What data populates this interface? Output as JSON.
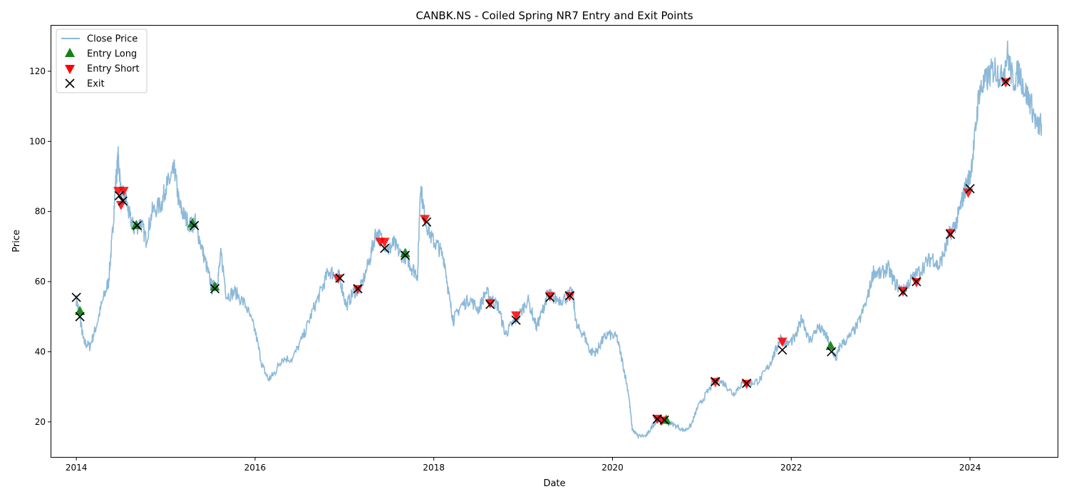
{
  "chart_data": {
    "type": "line",
    "title": "CANBK.NS - Coiled Spring NR7 Entry and Exit Points",
    "xlabel": "Date",
    "ylabel": "Price",
    "xlim": [
      2013.72,
      2024.98
    ],
    "ylim": [
      10,
      133
    ],
    "x_ticks": [
      2014,
      2016,
      2018,
      2020,
      2022,
      2024
    ],
    "x_tick_labels": [
      "2014",
      "2016",
      "2018",
      "2020",
      "2022",
      "2024"
    ],
    "y_ticks": [
      20,
      40,
      60,
      80,
      100,
      120
    ],
    "y_tick_labels": [
      "20",
      "40",
      "60",
      "80",
      "100",
      "120"
    ],
    "grid": false,
    "legend_position": "top-left",
    "colors": {
      "close": "#8cb9d8",
      "entry_long": "#148214",
      "entry_short": "#ff0000",
      "exit": "#000000"
    },
    "series": [
      {
        "name": "Close Price",
        "kind": "line",
        "points": [
          [
            2014.0,
            55
          ],
          [
            2014.04,
            50
          ],
          [
            2014.08,
            43
          ],
          [
            2014.15,
            41.5
          ],
          [
            2014.22,
            47
          ],
          [
            2014.3,
            55
          ],
          [
            2014.36,
            60
          ],
          [
            2014.4,
            72
          ],
          [
            2014.44,
            88
          ],
          [
            2014.47,
            96
          ],
          [
            2014.5,
            85
          ],
          [
            2014.55,
            84
          ],
          [
            2014.6,
            78
          ],
          [
            2014.65,
            75
          ],
          [
            2014.72,
            77
          ],
          [
            2014.78,
            72
          ],
          [
            2014.85,
            80
          ],
          [
            2014.95,
            82
          ],
          [
            2015.0,
            87
          ],
          [
            2015.05,
            89
          ],
          [
            2015.1,
            92
          ],
          [
            2015.15,
            82
          ],
          [
            2015.2,
            79
          ],
          [
            2015.28,
            76
          ],
          [
            2015.33,
            77
          ],
          [
            2015.4,
            70
          ],
          [
            2015.47,
            63
          ],
          [
            2015.52,
            58
          ],
          [
            2015.58,
            60
          ],
          [
            2015.62,
            68
          ],
          [
            2015.68,
            56
          ],
          [
            2015.78,
            57
          ],
          [
            2015.9,
            53
          ],
          [
            2016.0,
            46
          ],
          [
            2016.08,
            36
          ],
          [
            2016.15,
            32
          ],
          [
            2016.22,
            34
          ],
          [
            2016.3,
            38
          ],
          [
            2016.42,
            38
          ],
          [
            2016.55,
            45
          ],
          [
            2016.65,
            52
          ],
          [
            2016.75,
            58
          ],
          [
            2016.82,
            63
          ],
          [
            2016.9,
            62
          ],
          [
            2016.95,
            61
          ],
          [
            2017.02,
            53
          ],
          [
            2017.1,
            57
          ],
          [
            2017.18,
            58
          ],
          [
            2017.28,
            66
          ],
          [
            2017.35,
            74
          ],
          [
            2017.42,
            72
          ],
          [
            2017.5,
            69
          ],
          [
            2017.55,
            71
          ],
          [
            2017.62,
            68
          ],
          [
            2017.7,
            67
          ],
          [
            2017.75,
            64
          ],
          [
            2017.82,
            62
          ],
          [
            2017.85,
            88
          ],
          [
            2017.9,
            78
          ],
          [
            2017.98,
            72
          ],
          [
            2018.05,
            70
          ],
          [
            2018.12,
            66
          ],
          [
            2018.18,
            54
          ],
          [
            2018.22,
            49
          ],
          [
            2018.3,
            53
          ],
          [
            2018.4,
            55
          ],
          [
            2018.5,
            52
          ],
          [
            2018.58,
            57
          ],
          [
            2018.65,
            55
          ],
          [
            2018.72,
            53
          ],
          [
            2018.8,
            45
          ],
          [
            2018.88,
            48
          ],
          [
            2018.95,
            50
          ],
          [
            2019.05,
            55
          ],
          [
            2019.15,
            47
          ],
          [
            2019.22,
            52
          ],
          [
            2019.28,
            57
          ],
          [
            2019.35,
            55
          ],
          [
            2019.45,
            55
          ],
          [
            2019.55,
            57
          ],
          [
            2019.6,
            47
          ],
          [
            2019.68,
            45
          ],
          [
            2019.75,
            40
          ],
          [
            2019.82,
            40
          ],
          [
            2019.88,
            43
          ],
          [
            2019.95,
            45
          ],
          [
            2020.05,
            44
          ],
          [
            2020.12,
            36
          ],
          [
            2020.18,
            28
          ],
          [
            2020.22,
            18
          ],
          [
            2020.28,
            16
          ],
          [
            2020.38,
            16
          ],
          [
            2020.45,
            19
          ],
          [
            2020.52,
            21
          ],
          [
            2020.6,
            20
          ],
          [
            2020.7,
            19
          ],
          [
            2020.8,
            17.5
          ],
          [
            2020.88,
            19
          ],
          [
            2020.95,
            24
          ],
          [
            2021.05,
            28
          ],
          [
            2021.15,
            32
          ],
          [
            2021.25,
            31
          ],
          [
            2021.35,
            28
          ],
          [
            2021.45,
            31
          ],
          [
            2021.55,
            31
          ],
          [
            2021.65,
            32
          ],
          [
            2021.75,
            36
          ],
          [
            2021.82,
            40
          ],
          [
            2021.88,
            44
          ],
          [
            2021.95,
            42
          ],
          [
            2022.05,
            44
          ],
          [
            2022.12,
            50
          ],
          [
            2022.2,
            43
          ],
          [
            2022.3,
            47
          ],
          [
            2022.38,
            45
          ],
          [
            2022.45,
            41
          ],
          [
            2022.5,
            38
          ],
          [
            2022.55,
            42
          ],
          [
            2022.65,
            44
          ],
          [
            2022.75,
            48
          ],
          [
            2022.85,
            55
          ],
          [
            2022.92,
            63
          ],
          [
            2023.0,
            62
          ],
          [
            2023.08,
            64
          ],
          [
            2023.15,
            60
          ],
          [
            2023.25,
            57
          ],
          [
            2023.32,
            60
          ],
          [
            2023.4,
            62
          ],
          [
            2023.5,
            65
          ],
          [
            2023.58,
            67
          ],
          [
            2023.65,
            64
          ],
          [
            2023.72,
            69
          ],
          [
            2023.78,
            74
          ],
          [
            2023.85,
            77
          ],
          [
            2023.9,
            82
          ],
          [
            2023.95,
            87
          ],
          [
            2024.0,
            90
          ],
          [
            2024.05,
            100
          ],
          [
            2024.1,
            114
          ],
          [
            2024.15,
            116
          ],
          [
            2024.22,
            119
          ],
          [
            2024.28,
            121
          ],
          [
            2024.35,
            118
          ],
          [
            2024.42,
            125
          ],
          [
            2024.48,
            117
          ],
          [
            2024.55,
            120
          ],
          [
            2024.62,
            114
          ],
          [
            2024.68,
            111
          ],
          [
            2024.75,
            104
          ],
          [
            2024.8,
            105
          ]
        ]
      },
      {
        "name": "Entry Long",
        "kind": "marker",
        "marker": "triangle-up",
        "points": [
          [
            2014.04,
            51.5
          ],
          [
            2014.67,
            76
          ],
          [
            2015.3,
            76.5
          ],
          [
            2015.55,
            58.5
          ],
          [
            2017.68,
            68
          ],
          [
            2020.6,
            20.5
          ],
          [
            2022.44,
            41.5
          ]
        ]
      },
      {
        "name": "Entry Short",
        "kind": "marker",
        "marker": "triangle-down",
        "points": [
          [
            2014.47,
            86
          ],
          [
            2014.5,
            82
          ],
          [
            2014.53,
            86
          ],
          [
            2016.93,
            61
          ],
          [
            2017.15,
            58
          ],
          [
            2017.4,
            71.5
          ],
          [
            2017.45,
            71.5
          ],
          [
            2017.9,
            78
          ],
          [
            2018.63,
            54
          ],
          [
            2018.92,
            50.5
          ],
          [
            2019.3,
            56
          ],
          [
            2019.52,
            56
          ],
          [
            2020.5,
            21
          ],
          [
            2020.55,
            20.5
          ],
          [
            2021.15,
            31.5
          ],
          [
            2021.5,
            31
          ],
          [
            2021.9,
            43
          ],
          [
            2023.25,
            57.5
          ],
          [
            2023.4,
            60
          ],
          [
            2023.78,
            74
          ],
          [
            2023.98,
            85.5
          ],
          [
            2024.4,
            117
          ]
        ]
      },
      {
        "name": "Exit",
        "kind": "marker",
        "marker": "x",
        "points": [
          [
            2014.0,
            55.5
          ],
          [
            2014.04,
            50
          ],
          [
            2014.48,
            84.5
          ],
          [
            2014.52,
            83
          ],
          [
            2014.68,
            76
          ],
          [
            2015.32,
            76
          ],
          [
            2015.55,
            58
          ],
          [
            2016.95,
            61
          ],
          [
            2017.15,
            58
          ],
          [
            2017.45,
            69.5
          ],
          [
            2017.68,
            67.5
          ],
          [
            2017.92,
            77
          ],
          [
            2018.63,
            53.5
          ],
          [
            2018.92,
            49
          ],
          [
            2019.3,
            55.5
          ],
          [
            2019.52,
            56
          ],
          [
            2020.5,
            20.8
          ],
          [
            2020.58,
            20.5
          ],
          [
            2021.15,
            31.5
          ],
          [
            2021.5,
            31
          ],
          [
            2021.9,
            40.5
          ],
          [
            2022.45,
            40
          ],
          [
            2023.25,
            57
          ],
          [
            2023.4,
            60
          ],
          [
            2023.78,
            73.5
          ],
          [
            2024.0,
            86.5
          ],
          [
            2024.4,
            117
          ]
        ]
      }
    ]
  }
}
